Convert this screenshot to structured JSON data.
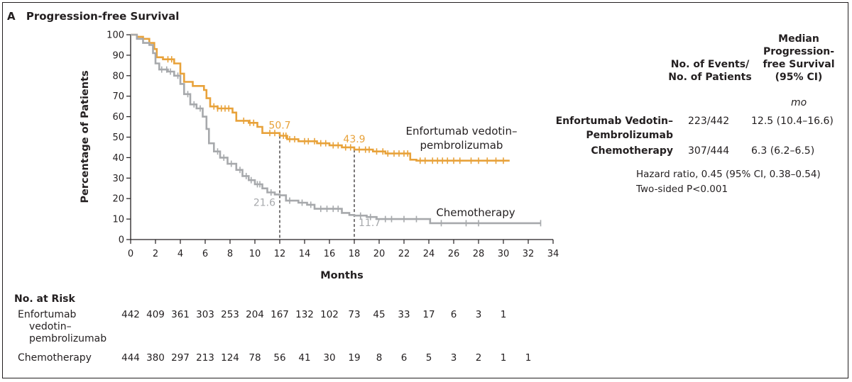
{
  "panel": {
    "letter": "A",
    "title": "Progression-free Survival"
  },
  "chart_data": {
    "type": "line",
    "title": "Progression-free Survival",
    "xlabel": "Months",
    "ylabel": "Percentage of Patients",
    "xlim": [
      0,
      34
    ],
    "ylim": [
      0,
      100
    ],
    "x_ticks": [
      0,
      2,
      4,
      6,
      8,
      10,
      12,
      14,
      16,
      18,
      20,
      22,
      24,
      26,
      28,
      30,
      32,
      34
    ],
    "y_ticks": [
      0,
      10,
      20,
      30,
      40,
      50,
      60,
      70,
      80,
      90,
      100
    ],
    "series": [
      {
        "name": "Enfortumab vedotin–pembrolizumab",
        "label_lines": [
          "Enfortumab vedotin–",
          "pembrolizumab"
        ],
        "color": "#e8a23a",
        "steps": [
          [
            0,
            100
          ],
          [
            0.5,
            99
          ],
          [
            1.0,
            98
          ],
          [
            1.5,
            96
          ],
          [
            1.9,
            93
          ],
          [
            2.1,
            89
          ],
          [
            2.6,
            88
          ],
          [
            3.5,
            86
          ],
          [
            4.0,
            81
          ],
          [
            4.3,
            77
          ],
          [
            5.0,
            75
          ],
          [
            5.9,
            73
          ],
          [
            6.1,
            69
          ],
          [
            6.4,
            65
          ],
          [
            7.0,
            64
          ],
          [
            8.2,
            62
          ],
          [
            8.5,
            58
          ],
          [
            9.5,
            57
          ],
          [
            10.2,
            55
          ],
          [
            10.6,
            52
          ],
          [
            12.0,
            50.7
          ],
          [
            12.6,
            49
          ],
          [
            13.5,
            48
          ],
          [
            15.0,
            47
          ],
          [
            16.0,
            46
          ],
          [
            17.0,
            45
          ],
          [
            18.0,
            43.9
          ],
          [
            19.5,
            43
          ],
          [
            20.5,
            42
          ],
          [
            22.5,
            39
          ],
          [
            23.0,
            38.5
          ],
          [
            30.5,
            38.5
          ]
        ],
        "censor_x": [
          3.0,
          3.3,
          6.7,
          7.0,
          7.3,
          7.6,
          7.9,
          9.1,
          9.6,
          9.9,
          11.2,
          11.6,
          12.3,
          12.5,
          12.8,
          13.2,
          14.0,
          14.3,
          14.8,
          15.3,
          15.7,
          16.3,
          16.7,
          17.3,
          17.7,
          18.4,
          18.9,
          19.2,
          19.8,
          20.3,
          20.7,
          21.2,
          21.6,
          22.0,
          22.3,
          23.3,
          23.7,
          24.3,
          24.7,
          25.1,
          25.5,
          26.0,
          26.5,
          27.4,
          28.0,
          28.7,
          29.4,
          30.0
        ],
        "median_marker": [
          {
            "x": 12,
            "y": 50.7,
            "label": "50.7"
          },
          {
            "x": 18,
            "y": 43.9,
            "label": "43.9"
          }
        ]
      },
      {
        "name": "Chemotherapy",
        "label_lines": [
          "Chemotherapy"
        ],
        "color": "#a7a9ac",
        "steps": [
          [
            0,
            100
          ],
          [
            0.5,
            98
          ],
          [
            1.0,
            96
          ],
          [
            1.5,
            95
          ],
          [
            1.8,
            91
          ],
          [
            2.0,
            86
          ],
          [
            2.3,
            83
          ],
          [
            3.0,
            82
          ],
          [
            3.5,
            80
          ],
          [
            4.0,
            76
          ],
          [
            4.3,
            71
          ],
          [
            4.8,
            66
          ],
          [
            5.3,
            64
          ],
          [
            5.8,
            60
          ],
          [
            6.1,
            54
          ],
          [
            6.3,
            47
          ],
          [
            6.7,
            43
          ],
          [
            7.2,
            40
          ],
          [
            7.8,
            37
          ],
          [
            8.5,
            34
          ],
          [
            9.0,
            31
          ],
          [
            9.5,
            29
          ],
          [
            10.0,
            27
          ],
          [
            10.6,
            25
          ],
          [
            11.0,
            23
          ],
          [
            11.6,
            22
          ],
          [
            12.0,
            21.6
          ],
          [
            12.5,
            19
          ],
          [
            13.5,
            18
          ],
          [
            14.2,
            17
          ],
          [
            14.8,
            15
          ],
          [
            17.0,
            13
          ],
          [
            17.6,
            12
          ],
          [
            18.0,
            11.7
          ],
          [
            19.0,
            11
          ],
          [
            19.8,
            10
          ],
          [
            24.1,
            8
          ],
          [
            33.0,
            8
          ]
        ],
        "censor_x": [
          2.5,
          2.9,
          3.2,
          3.8,
          4.6,
          5.1,
          5.6,
          7.0,
          7.5,
          8.1,
          8.8,
          9.3,
          9.7,
          10.2,
          10.4,
          11.3,
          12.8,
          13.8,
          14.5,
          15.3,
          15.8,
          16.3,
          16.7,
          18.5,
          19.3,
          20.5,
          21.0,
          22.0,
          23.0,
          25.0,
          27.0,
          28.0,
          33.0
        ],
        "median_marker": [
          {
            "x": 12,
            "y": 21.6,
            "label": "21.6"
          },
          {
            "x": 18,
            "y": 11.7,
            "label": "11.7"
          }
        ]
      }
    ]
  },
  "legend": {
    "header_events": [
      "No. of Events/",
      "No. of Patients"
    ],
    "header_median": [
      "Median",
      "Progression-",
      "free Survival",
      "(95% CI)"
    ],
    "unit": "mo",
    "rows": [
      {
        "name": "Enfortumab Vedotin–",
        "name2": "Pembrolizumab",
        "events": "223/442",
        "median": "12.5 (10.4–16.6)"
      },
      {
        "name": "Chemotherapy",
        "name2": "",
        "events": "307/444",
        "median": "6.3 (6.2–6.5)"
      }
    ],
    "hazard_ratio": "Hazard ratio, 0.45 (95% CI, 0.38–0.54)",
    "p_value": "Two-sided P<0.001"
  },
  "at_risk": {
    "title": "No. at Risk",
    "groups": [
      {
        "label_lines": [
          "Enfortumab",
          "vedotin–",
          "pembrolizumab"
        ],
        "values": [
          "442",
          "409",
          "361",
          "303",
          "253",
          "204",
          "167",
          "132",
          "102",
          "73",
          "45",
          "33",
          "17",
          "6",
          "3",
          "1"
        ]
      },
      {
        "label_lines": [
          "Chemotherapy"
        ],
        "values": [
          "444",
          "380",
          "297",
          "213",
          "124",
          "78",
          "56",
          "41",
          "30",
          "19",
          "8",
          "6",
          "5",
          "3",
          "2",
          "1",
          "1"
        ]
      }
    ]
  }
}
